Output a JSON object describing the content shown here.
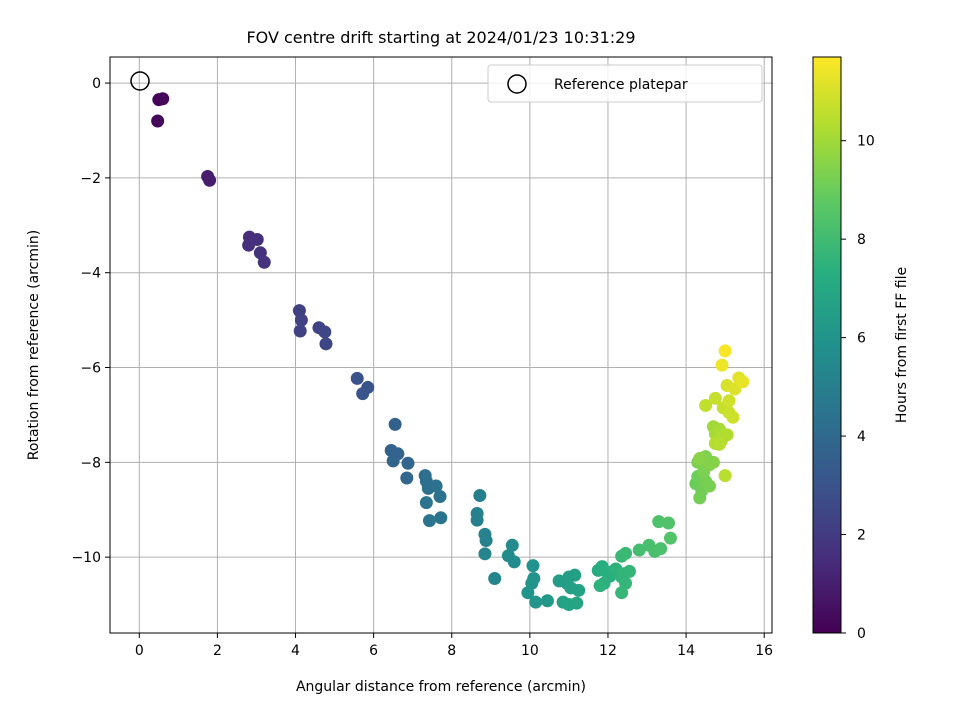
{
  "chart_data": {
    "type": "scatter",
    "title": "FOV centre drift starting at 2024/01/23 10:31:29",
    "xlabel": "Angular distance from reference (arcmin)",
    "ylabel": "Rotation from reference (arcmin)",
    "xlim": [
      -0.75,
      16.2
    ],
    "ylim": [
      -11.6,
      0.55
    ],
    "xticks": [
      0,
      2,
      4,
      6,
      8,
      10,
      12,
      14,
      16
    ],
    "xtick_labels": [
      "0",
      "2",
      "4",
      "6",
      "8",
      "10",
      "12",
      "14",
      "16"
    ],
    "yticks": [
      0,
      -2,
      -4,
      -6,
      -8,
      -10
    ],
    "ytick_labels": [
      "0",
      "−2",
      "−4",
      "−6",
      "−8",
      "−10"
    ],
    "grid": true,
    "legend": {
      "placement": "top-right",
      "entries": [
        "Reference platepar"
      ]
    },
    "reference_point": {
      "x": 0,
      "y": 0
    },
    "colorbar": {
      "label": "Hours from first FF file",
      "colormap": "viridis",
      "range": [
        0,
        11.7
      ],
      "ticks": [
        0,
        2,
        4,
        6,
        8,
        10
      ],
      "tick_labels": [
        "0",
        "2",
        "4",
        "6",
        "8",
        "10"
      ]
    },
    "points": [
      {
        "x": 0.5,
        "y": -0.35,
        "h": 0.1
      },
      {
        "x": 0.6,
        "y": -0.33,
        "h": 0.15
      },
      {
        "x": 0.47,
        "y": -0.8,
        "h": 0.2
      },
      {
        "x": 1.75,
        "y": -1.97,
        "h": 0.9
      },
      {
        "x": 1.8,
        "y": -2.05,
        "h": 0.95
      },
      {
        "x": 2.82,
        "y": -3.25,
        "h": 1.5
      },
      {
        "x": 3.02,
        "y": -3.3,
        "h": 1.55
      },
      {
        "x": 2.8,
        "y": -3.42,
        "h": 1.6
      },
      {
        "x": 3.1,
        "y": -3.58,
        "h": 1.65
      },
      {
        "x": 3.2,
        "y": -3.78,
        "h": 1.7
      },
      {
        "x": 4.1,
        "y": -4.8,
        "h": 2.2
      },
      {
        "x": 4.15,
        "y": -5.0,
        "h": 2.25
      },
      {
        "x": 4.12,
        "y": -5.23,
        "h": 2.3
      },
      {
        "x": 4.6,
        "y": -5.16,
        "h": 2.35
      },
      {
        "x": 4.75,
        "y": -5.25,
        "h": 2.4
      },
      {
        "x": 4.78,
        "y": -5.5,
        "h": 2.45
      },
      {
        "x": 5.58,
        "y": -6.23,
        "h": 2.9
      },
      {
        "x": 5.85,
        "y": -6.42,
        "h": 3.0
      },
      {
        "x": 5.72,
        "y": -6.55,
        "h": 3.05
      },
      {
        "x": 6.55,
        "y": -7.2,
        "h": 3.6
      },
      {
        "x": 6.45,
        "y": -7.75,
        "h": 3.7
      },
      {
        "x": 6.62,
        "y": -7.82,
        "h": 3.75
      },
      {
        "x": 6.5,
        "y": -7.97,
        "h": 3.8
      },
      {
        "x": 6.88,
        "y": -8.02,
        "h": 3.85
      },
      {
        "x": 6.85,
        "y": -8.33,
        "h": 3.9
      },
      {
        "x": 7.32,
        "y": -8.28,
        "h": 4.2
      },
      {
        "x": 7.35,
        "y": -8.4,
        "h": 4.25
      },
      {
        "x": 7.4,
        "y": -8.55,
        "h": 4.3
      },
      {
        "x": 7.6,
        "y": -8.5,
        "h": 4.35
      },
      {
        "x": 7.7,
        "y": -8.72,
        "h": 4.4
      },
      {
        "x": 7.35,
        "y": -8.85,
        "h": 4.45
      },
      {
        "x": 7.72,
        "y": -9.17,
        "h": 4.5
      },
      {
        "x": 7.43,
        "y": -9.23,
        "h": 4.55
      },
      {
        "x": 8.72,
        "y": -8.7,
        "h": 5.0
      },
      {
        "x": 8.65,
        "y": -9.08,
        "h": 5.05
      },
      {
        "x": 8.65,
        "y": -9.22,
        "h": 5.1
      },
      {
        "x": 8.85,
        "y": -9.52,
        "h": 5.15
      },
      {
        "x": 8.88,
        "y": -9.65,
        "h": 5.2
      },
      {
        "x": 8.85,
        "y": -9.93,
        "h": 5.25
      },
      {
        "x": 9.1,
        "y": -10.45,
        "h": 5.3
      },
      {
        "x": 9.55,
        "y": -9.75,
        "h": 5.5
      },
      {
        "x": 9.45,
        "y": -9.97,
        "h": 5.55
      },
      {
        "x": 9.6,
        "y": -10.1,
        "h": 5.6
      },
      {
        "x": 10.08,
        "y": -10.18,
        "h": 5.9
      },
      {
        "x": 10.1,
        "y": -10.45,
        "h": 5.95
      },
      {
        "x": 10.05,
        "y": -10.55,
        "h": 6.0
      },
      {
        "x": 9.95,
        "y": -10.75,
        "h": 6.05
      },
      {
        "x": 10.15,
        "y": -10.95,
        "h": 6.1
      },
      {
        "x": 10.45,
        "y": -10.92,
        "h": 6.2
      },
      {
        "x": 10.75,
        "y": -10.5,
        "h": 6.4
      },
      {
        "x": 10.95,
        "y": -10.55,
        "h": 6.45
      },
      {
        "x": 11.0,
        "y": -10.42,
        "h": 6.5
      },
      {
        "x": 11.15,
        "y": -10.38,
        "h": 6.55
      },
      {
        "x": 11.05,
        "y": -10.65,
        "h": 6.6
      },
      {
        "x": 11.25,
        "y": -10.7,
        "h": 6.65
      },
      {
        "x": 10.85,
        "y": -10.95,
        "h": 6.7
      },
      {
        "x": 11.0,
        "y": -11.0,
        "h": 6.75
      },
      {
        "x": 11.2,
        "y": -10.97,
        "h": 6.8
      },
      {
        "x": 11.75,
        "y": -10.28,
        "h": 7.2
      },
      {
        "x": 11.85,
        "y": -10.2,
        "h": 7.25
      },
      {
        "x": 11.95,
        "y": -10.3,
        "h": 7.3
      },
      {
        "x": 12.05,
        "y": -10.4,
        "h": 7.35
      },
      {
        "x": 11.9,
        "y": -10.55,
        "h": 7.4
      },
      {
        "x": 11.8,
        "y": -10.6,
        "h": 7.45
      },
      {
        "x": 12.2,
        "y": -10.25,
        "h": 7.5
      },
      {
        "x": 12.35,
        "y": -10.42,
        "h": 7.55
      },
      {
        "x": 12.4,
        "y": -10.35,
        "h": 7.6
      },
      {
        "x": 12.55,
        "y": -10.3,
        "h": 7.65
      },
      {
        "x": 12.45,
        "y": -10.55,
        "h": 7.7
      },
      {
        "x": 12.35,
        "y": -10.75,
        "h": 7.75
      },
      {
        "x": 12.35,
        "y": -9.98,
        "h": 7.8
      },
      {
        "x": 12.45,
        "y": -9.92,
        "h": 7.85
      },
      {
        "x": 12.8,
        "y": -9.85,
        "h": 8.1
      },
      {
        "x": 13.05,
        "y": -9.75,
        "h": 8.2
      },
      {
        "x": 13.2,
        "y": -9.88,
        "h": 8.25
      },
      {
        "x": 13.35,
        "y": -9.82,
        "h": 8.3
      },
      {
        "x": 13.3,
        "y": -9.25,
        "h": 8.35
      },
      {
        "x": 13.55,
        "y": -9.28,
        "h": 8.4
      },
      {
        "x": 13.6,
        "y": -9.6,
        "h": 8.45
      },
      {
        "x": 14.25,
        "y": -8.45,
        "h": 9.0
      },
      {
        "x": 14.3,
        "y": -8.3,
        "h": 9.05
      },
      {
        "x": 14.4,
        "y": -8.6,
        "h": 9.1
      },
      {
        "x": 14.35,
        "y": -8.75,
        "h": 9.15
      },
      {
        "x": 14.5,
        "y": -8.4,
        "h": 9.2
      },
      {
        "x": 14.6,
        "y": -8.5,
        "h": 9.25
      },
      {
        "x": 14.45,
        "y": -8.2,
        "h": 9.3
      },
      {
        "x": 14.3,
        "y": -8.0,
        "h": 9.35
      },
      {
        "x": 14.5,
        "y": -7.88,
        "h": 9.4
      },
      {
        "x": 14.6,
        "y": -8.05,
        "h": 9.45
      },
      {
        "x": 14.7,
        "y": -8.0,
        "h": 9.5
      },
      {
        "x": 14.35,
        "y": -7.92,
        "h": 9.55
      },
      {
        "x": 14.7,
        "y": -7.25,
        "h": 10.0
      },
      {
        "x": 14.75,
        "y": -7.4,
        "h": 10.05
      },
      {
        "x": 14.85,
        "y": -7.3,
        "h": 10.1
      },
      {
        "x": 14.8,
        "y": -7.5,
        "h": 10.15
      },
      {
        "x": 14.9,
        "y": -7.55,
        "h": 10.2
      },
      {
        "x": 14.95,
        "y": -7.45,
        "h": 10.25
      },
      {
        "x": 15.05,
        "y": -7.42,
        "h": 10.3
      },
      {
        "x": 14.75,
        "y": -7.6,
        "h": 10.35
      },
      {
        "x": 14.85,
        "y": -7.62,
        "h": 10.4
      },
      {
        "x": 15.0,
        "y": -8.28,
        "h": 10.45
      },
      {
        "x": 14.5,
        "y": -6.8,
        "h": 10.6
      },
      {
        "x": 14.75,
        "y": -6.65,
        "h": 10.65
      },
      {
        "x": 14.95,
        "y": -6.85,
        "h": 10.7
      },
      {
        "x": 15.1,
        "y": -6.95,
        "h": 10.75
      },
      {
        "x": 15.2,
        "y": -7.05,
        "h": 10.8
      },
      {
        "x": 15.1,
        "y": -6.7,
        "h": 10.85
      },
      {
        "x": 15.05,
        "y": -6.38,
        "h": 11.0
      },
      {
        "x": 15.25,
        "y": -6.45,
        "h": 11.1
      },
      {
        "x": 15.35,
        "y": -6.22,
        "h": 11.2
      },
      {
        "x": 15.45,
        "y": -6.3,
        "h": 11.3
      },
      {
        "x": 14.92,
        "y": -5.95,
        "h": 11.4
      },
      {
        "x": 15.0,
        "y": -5.65,
        "h": 11.6
      }
    ]
  }
}
